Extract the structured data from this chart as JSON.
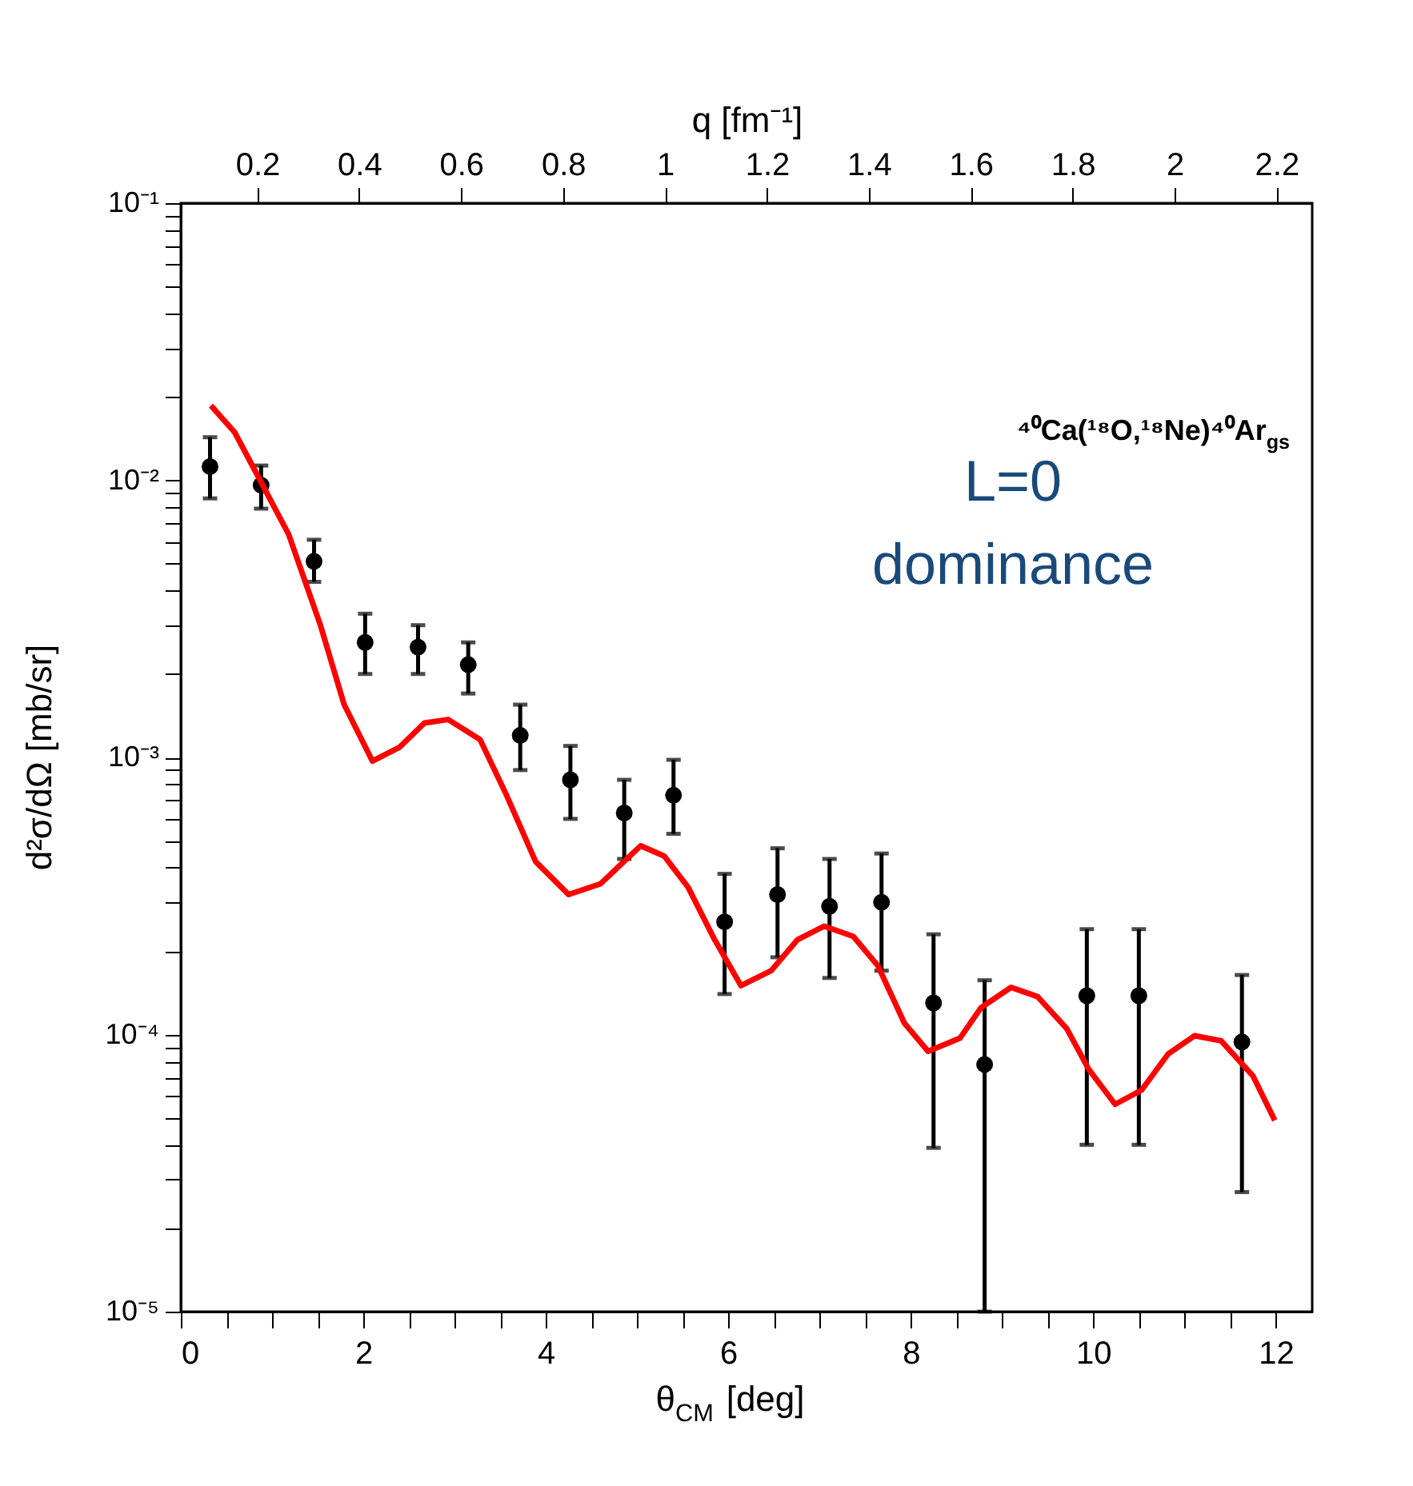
{
  "chart_data": {
    "type": "scatter",
    "xlabel": "θ$_{CM}$ [deg]",
    "ylabel": "d²σ/dΩ [mb/sr]",
    "x2label": "q [fm⁻¹]",
    "annotations": [
      "⁴⁰Ca(¹⁸O,¹⁸Ne)⁴⁰Ar$_{gs}$",
      "L=0\ndominance"
    ],
    "log": "y",
    "grid": false,
    "xlim": [
      0,
      12.4
    ],
    "xticks": [
      0,
      {
        "value": 0.5,
        "label": null
      },
      {
        "value": 1,
        "label": null
      },
      {
        "value": 1.5,
        "label": null
      },
      2,
      {
        "value": 2.5,
        "label": null
      },
      {
        "value": 3,
        "label": null
      },
      {
        "value": 3.5,
        "label": null
      },
      4,
      {
        "value": 4.5,
        "label": null
      },
      {
        "value": 5,
        "label": null
      },
      {
        "value": 5.5,
        "label": null
      },
      6,
      {
        "value": 6.5,
        "label": null
      },
      {
        "value": 7,
        "label": null
      },
      {
        "value": 7.5,
        "label": null
      },
      8,
      {
        "value": 8.5,
        "label": null
      },
      {
        "value": 9,
        "label": null
      },
      {
        "value": 9.5,
        "label": null
      },
      10,
      {
        "value": 10.5,
        "label": null
      },
      {
        "value": 11,
        "label": null
      },
      {
        "value": 11.5,
        "label": null
      },
      12
    ],
    "ylim": [
      1e-05,
      0.1
    ],
    "yticks": [
      {
        "value": 1e-05,
        "label": "10⁻⁵"
      },
      {
        "value": 2e-05,
        "label": null
      },
      {
        "value": 3e-05,
        "label": null
      },
      {
        "value": 4e-05,
        "label": null
      },
      {
        "value": 5e-05,
        "label": null
      },
      {
        "value": 6e-05,
        "label": null
      },
      {
        "value": 7e-05,
        "label": null
      },
      {
        "value": 8e-05,
        "label": null
      },
      {
        "value": 9e-05,
        "label": null
      },
      {
        "value": 0.0001,
        "label": "10⁻⁴"
      },
      {
        "value": 0.0002,
        "label": null
      },
      {
        "value": 0.0003,
        "label": null
      },
      {
        "value": 0.0004,
        "label": null
      },
      {
        "value": 0.0005,
        "label": null
      },
      {
        "value": 0.0006,
        "label": null
      },
      {
        "value": 0.0007,
        "label": null
      },
      {
        "value": 0.0008,
        "label": null
      },
      {
        "value": 0.0009,
        "label": null
      },
      {
        "value": 0.001,
        "label": "10⁻³"
      },
      {
        "value": 0.002,
        "label": null
      },
      {
        "value": 0.003,
        "label": null
      },
      {
        "value": 0.004,
        "label": null
      },
      {
        "value": 0.005,
        "label": null
      },
      {
        "value": 0.006,
        "label": null
      },
      {
        "value": 0.007,
        "label": null
      },
      {
        "value": 0.008,
        "label": null
      },
      {
        "value": 0.009,
        "label": null
      },
      {
        "value": 0.01,
        "label": "10⁻²"
      },
      {
        "value": 0.02,
        "label": null
      },
      {
        "value": 0.03,
        "label": null
      },
      {
        "value": 0.04,
        "label": null
      },
      {
        "value": 0.05,
        "label": null
      },
      {
        "value": 0.06,
        "label": null
      },
      {
        "value": 0.07,
        "label": null
      },
      {
        "value": 0.08,
        "label": null
      },
      {
        "value": 0.09,
        "label": null
      },
      {
        "value": 0.1,
        "label": "10⁻¹"
      }
    ],
    "x2lim": [
      0.05,
      2.27
    ],
    "x2ticks": [
      0.2,
      0.4,
      0.6,
      0.8,
      1,
      1.2,
      1.4,
      1.6,
      1.8,
      2,
      2.2
    ],
    "series": [
      {
        "marker": "circle",
        "color": "#000000",
        "x": [
          0.32,
          0.88,
          1.46,
          2.02,
          2.6,
          3.15,
          3.72,
          4.27,
          4.86,
          5.4,
          5.96,
          6.54,
          7.11,
          7.68,
          8.25,
          8.81,
          9.93,
          10.5,
          11.63
        ],
        "values": [
          0.0112,
          0.0096,
          0.0051,
          0.0026,
          0.0025,
          0.00216,
          0.0012,
          0.00083,
          0.00063,
          0.00073,
          0.000255,
          0.00032,
          0.00029,
          0.0003,
          0.00013,
          7.8e-05,
          0.000138,
          0.000138,
          9.4e-05
        ],
        "errors": [
          [
            0.0086,
            0.0143
          ],
          [
            0.0079,
            0.0113
          ],
          [
            0.0043,
            0.0061
          ],
          [
            0.002,
            0.0033
          ],
          [
            0.002,
            0.003
          ],
          [
            0.0017,
            0.0026
          ],
          [
            0.0009,
            0.00155
          ],
          [
            0.0006,
            0.0011
          ],
          [
            0.00043,
            0.00083
          ],
          [
            0.00053,
            0.00098
          ],
          [
            0.00014,
            0.00038
          ],
          [
            0.00019,
            0.00047
          ],
          [
            0.00016,
            0.00043
          ],
          [
            0.00017,
            0.00045
          ],
          [
            3.9e-05,
            0.00023
          ],
          [
            1e-05,
            0.000157
          ],
          [
            4e-05,
            0.00024
          ],
          [
            4e-05,
            0.00024
          ],
          [
            2.7e-05,
            0.000164
          ]
        ]
      },
      {
        "type": "line",
        "color": "#ff0000",
        "line_style": "solid",
        "x": [
          0.33,
          0.59,
          1.18,
          1.53,
          1.79,
          2.1,
          2.4,
          2.67,
          2.93,
          3.28,
          3.57,
          3.89,
          4.25,
          4.6,
          5.04,
          5.3,
          5.56,
          5.85,
          6.14,
          6.47,
          6.76,
          7.05,
          7.37,
          7.64,
          7.93,
          8.19,
          8.54,
          8.77,
          9.1,
          9.39,
          9.71,
          9.95,
          10.24,
          10.53,
          10.82,
          11.11,
          11.4,
          11.75,
          11.99
        ],
        "values": [
          0.0186,
          0.0149,
          0.0064,
          0.003,
          0.00155,
          0.00097,
          0.00109,
          0.00133,
          0.00137,
          0.00116,
          0.00073,
          0.00042,
          0.00032,
          0.00035,
          0.00048,
          0.00044,
          0.00034,
          0.00022,
          0.00015,
          0.00017,
          0.00022,
          0.000246,
          0.000226,
          0.000177,
          0.00011,
          8.7e-05,
          9.7e-05,
          0.000125,
          0.000148,
          0.000137,
          0.000105,
          7.5e-05,
          5.6e-05,
          6.3e-05,
          8.5e-05,
          9.9e-05,
          9.5e-05,
          7.1e-05,
          4.9e-05
        ]
      }
    ]
  }
}
